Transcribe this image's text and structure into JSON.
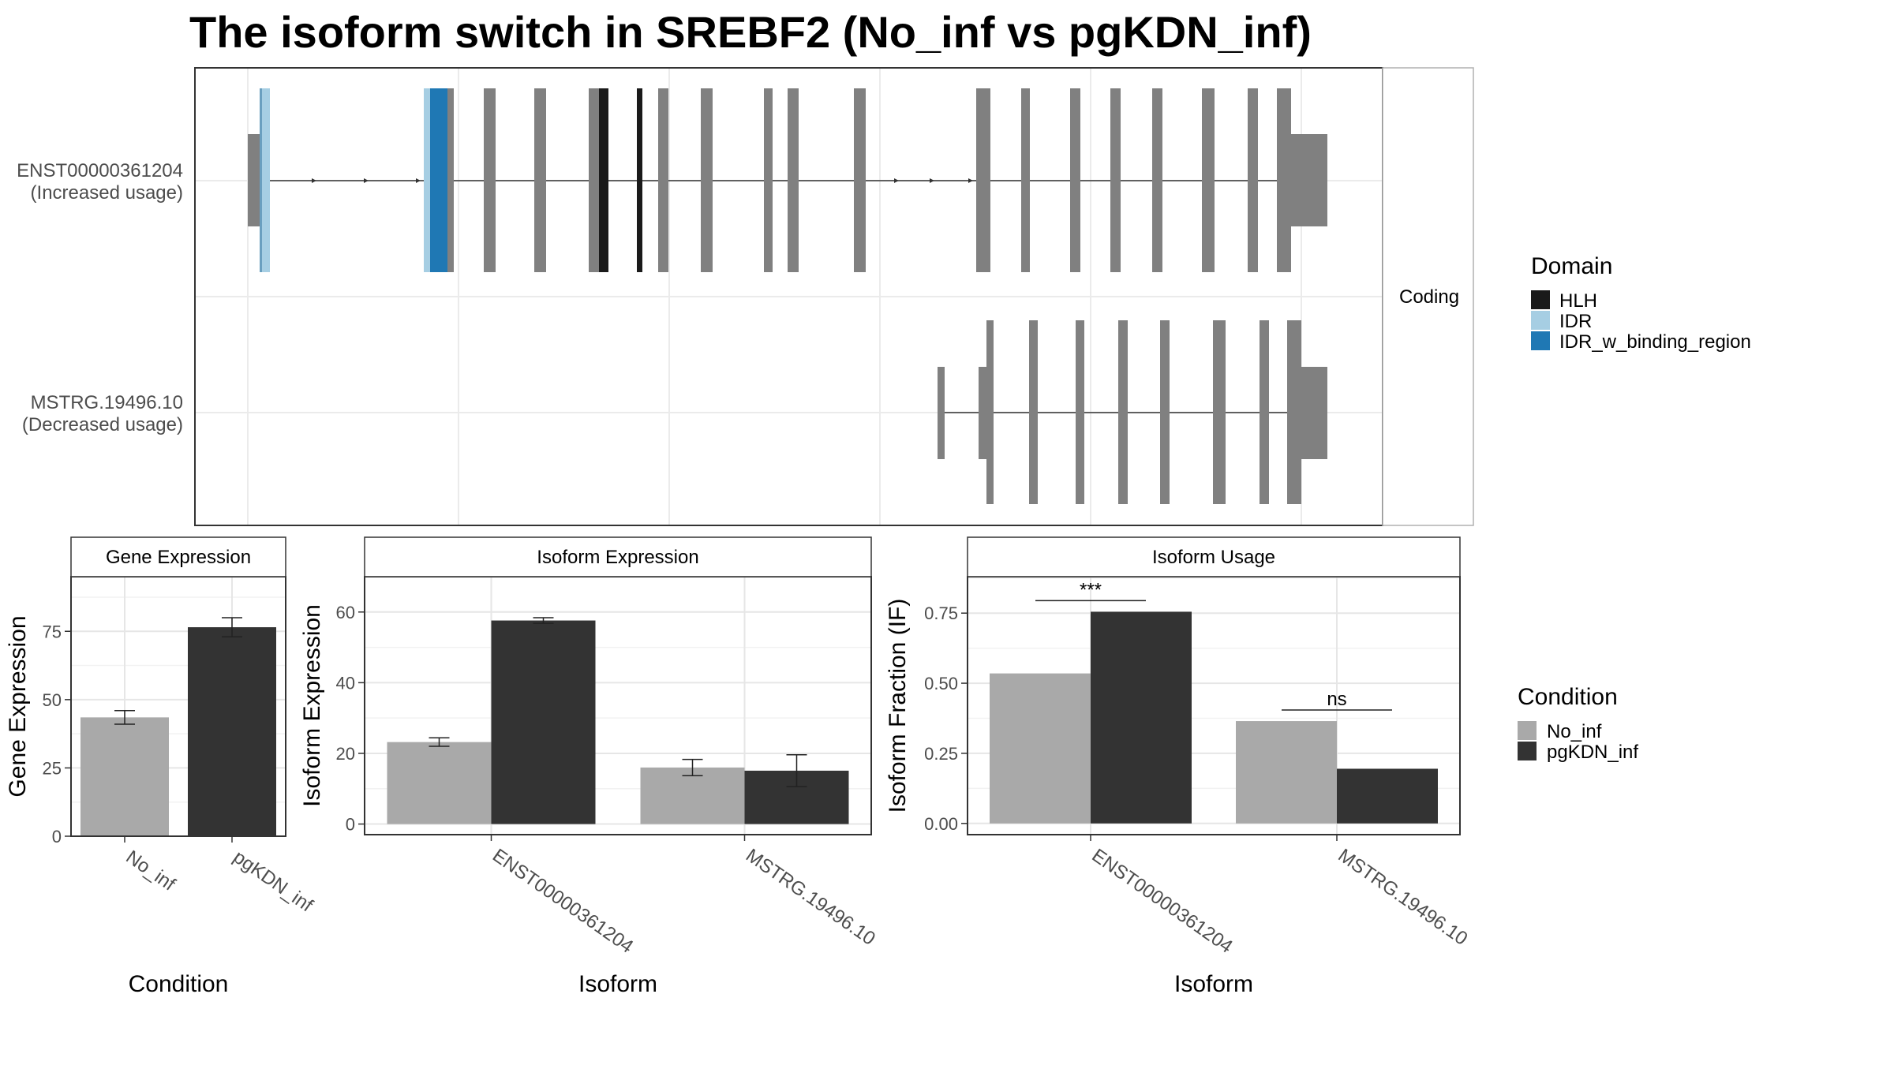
{
  "title": "The isoform switch in SREBF2 (No_inf vs pgKDN_inf)",
  "colors": {
    "exon": "#808080",
    "hlh": "#1a1a1a",
    "idr": "#a6cee3",
    "idr_binding": "#1f78b4",
    "no_inf": "#a9a9a9",
    "pgkdn_inf": "#333333"
  },
  "chart_data": [
    {
      "type": "gene-structure",
      "facet_label": "Coding",
      "isoforms": [
        {
          "id": "ENST00000361204",
          "usage": "(Increased usage)"
        },
        {
          "id": "MSTRG.19496.10",
          "usage": "(Decreased usage)"
        }
      ],
      "domain_legend": {
        "title": "Domain",
        "entries": [
          {
            "name": "HLH",
            "color": "#1a1a1a"
          },
          {
            "name": "IDR",
            "color": "#a6cee3"
          },
          {
            "name": "IDR_w_binding_region",
            "color": "#1f78b4"
          }
        ]
      },
      "grid": true
    },
    {
      "type": "bar",
      "title": "Gene Expression",
      "xlabel": "Condition",
      "ylabel": "Gene Expression",
      "categories": [
        "No_inf",
        "pgKDN_inf"
      ],
      "values": [
        43.5,
        76.5
      ],
      "errors": [
        2.5,
        3.5
      ],
      "ylim": [
        0,
        95
      ],
      "yticks": [
        "0",
        "25",
        "50",
        "75"
      ],
      "grid": true
    },
    {
      "type": "bar",
      "title": "Isoform Expression",
      "xlabel": "Isoform",
      "ylabel": "Isoform Expression",
      "categories": [
        "ENST00000361204",
        "MSTRG.19496.10"
      ],
      "series": [
        {
          "name": "No_inf",
          "values": [
            23.2,
            16.0
          ],
          "errors": [
            1.2,
            2.3
          ]
        },
        {
          "name": "pgKDN_inf",
          "values": [
            57.6,
            15.1
          ],
          "errors": [
            0.8,
            4.5
          ]
        }
      ],
      "ylim": [
        -3,
        70
      ],
      "yticks": [
        "0",
        "20",
        "40",
        "60"
      ],
      "grid": true
    },
    {
      "type": "bar",
      "title": "Isoform Usage",
      "xlabel": "Isoform",
      "ylabel": "Isoform Fraction (IF)",
      "categories": [
        "ENST00000361204",
        "MSTRG.19496.10"
      ],
      "series": [
        {
          "name": "No_inf",
          "values": [
            0.535,
            0.365
          ]
        },
        {
          "name": "pgKDN_inf",
          "values": [
            0.755,
            0.195
          ]
        }
      ],
      "significance": [
        "***",
        "ns"
      ],
      "ylim": [
        -0.04,
        0.88
      ],
      "yticks": [
        "0.00",
        "0.25",
        "0.50",
        "0.75"
      ],
      "grid": true
    }
  ],
  "condition_legend": {
    "title": "Condition",
    "entries": [
      {
        "name": "No_inf",
        "color": "#a9a9a9"
      },
      {
        "name": "pgKDN_inf",
        "color": "#333333"
      }
    ]
  }
}
